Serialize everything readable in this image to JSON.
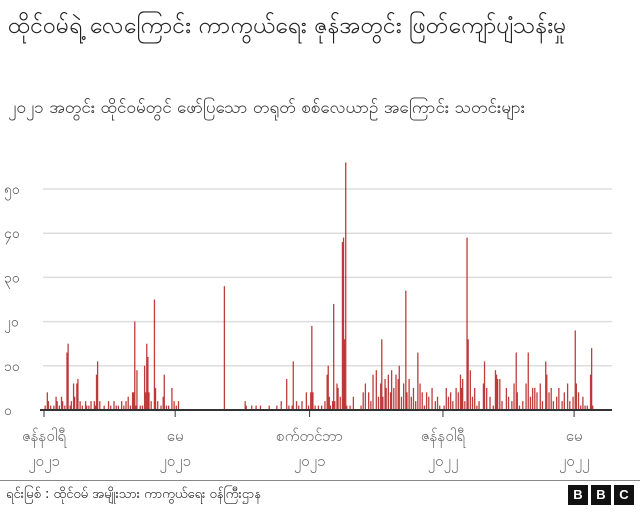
{
  "title": "ထိုင်ဝမ်ရဲ့ လေကြောင်း ကာကွယ်ရေး ဇုန်အတွင်း ဖြတ်ကျော်ပျံသန်းမှု",
  "subtitle": "၂၀၂၁ အတွင်း ထိုင်ဝမ်တွင် ဖော်ပြသော တရုတ် စစ်လေယာဉ် အကြောင်း သတင်းများ",
  "source": "ရင်းမြစ် : ထိုင်ဝမ် အမျိုးသား ကာကွယ်ရေး ဝန်ကြီးဌာန",
  "logo": [
    "B",
    "B",
    "C"
  ],
  "colors": {
    "bar": "#b31b1b",
    "grid": "#dddddd",
    "axis": "#333333"
  },
  "chart_data": {
    "type": "bar",
    "title": "",
    "xlabel": "",
    "ylabel": "",
    "ylim": [
      0,
      58
    ],
    "grid": true,
    "y_ticks": [
      {
        "value": 0,
        "label": "၀"
      },
      {
        "value": 10,
        "label": "၁၀"
      },
      {
        "value": 20,
        "label": "၂၀"
      },
      {
        "value": 30,
        "label": "၃၀"
      },
      {
        "value": 40,
        "label": "၄၀"
      },
      {
        "value": 50,
        "label": "၅၀"
      }
    ],
    "x_ticks": [
      {
        "date": "2021-01-01",
        "month": "ဇန်နဝါရီ",
        "year": "၂၀၂၁"
      },
      {
        "date": "2021-05-01",
        "month": "မေ",
        "year": "၂၀၂၁"
      },
      {
        "date": "2021-09-01",
        "month": "စက်တင်ဘာ",
        "year": "၂၀၂၁"
      },
      {
        "date": "2022-01-01",
        "month": "ဇန်နဝါရီ",
        "year": "၂၀၂၂"
      },
      {
        "date": "2022-05-01",
        "month": "မေ",
        "year": "၂၀၂၂"
      }
    ],
    "points": [
      [
        "2021-01-02",
        1
      ],
      [
        "2021-01-04",
        4
      ],
      [
        "2021-01-05",
        2
      ],
      [
        "2021-01-07",
        1
      ],
      [
        "2021-01-10",
        1
      ],
      [
        "2021-01-12",
        3
      ],
      [
        "2021-01-13",
        2
      ],
      [
        "2021-01-15",
        1
      ],
      [
        "2021-01-17",
        3
      ],
      [
        "2021-01-18",
        2
      ],
      [
        "2021-01-20",
        1
      ],
      [
        "2021-01-22",
        13
      ],
      [
        "2021-01-23",
        15
      ],
      [
        "2021-01-25",
        1
      ],
      [
        "2021-01-26",
        2
      ],
      [
        "2021-01-28",
        6
      ],
      [
        "2021-01-29",
        3
      ],
      [
        "2021-01-31",
        6
      ],
      [
        "2021-02-01",
        7
      ],
      [
        "2021-02-03",
        2
      ],
      [
        "2021-02-05",
        1
      ],
      [
        "2021-02-08",
        2
      ],
      [
        "2021-02-09",
        1
      ],
      [
        "2021-02-11",
        1
      ],
      [
        "2021-02-13",
        2
      ],
      [
        "2021-02-16",
        2
      ],
      [
        "2021-02-17",
        1
      ],
      [
        "2021-02-18",
        8
      ],
      [
        "2021-02-19",
        11
      ],
      [
        "2021-02-21",
        2
      ],
      [
        "2021-02-25",
        1
      ],
      [
        "2021-03-01",
        2
      ],
      [
        "2021-03-03",
        1
      ],
      [
        "2021-03-06",
        2
      ],
      [
        "2021-03-08",
        1
      ],
      [
        "2021-03-10",
        1
      ],
      [
        "2021-03-13",
        2
      ],
      [
        "2021-03-15",
        1
      ],
      [
        "2021-03-17",
        2
      ],
      [
        "2021-03-19",
        3
      ],
      [
        "2021-03-21",
        1
      ],
      [
        "2021-03-23",
        4
      ],
      [
        "2021-03-24",
        4
      ],
      [
        "2021-03-25",
        20
      ],
      [
        "2021-03-26",
        1
      ],
      [
        "2021-03-27",
        9
      ],
      [
        "2021-03-30",
        1
      ],
      [
        "2021-04-01",
        1
      ],
      [
        "2021-04-03",
        10
      ],
      [
        "2021-04-04",
        4
      ],
      [
        "2021-04-05",
        15
      ],
      [
        "2021-04-06",
        12
      ],
      [
        "2021-04-07",
        4
      ],
      [
        "2021-04-09",
        2
      ],
      [
        "2021-04-12",
        25
      ],
      [
        "2021-04-13",
        5
      ],
      [
        "2021-04-15",
        2
      ],
      [
        "2021-04-18",
        1
      ],
      [
        "2021-04-20",
        3
      ],
      [
        "2021-04-21",
        8
      ],
      [
        "2021-04-23",
        1
      ],
      [
        "2021-04-25",
        1
      ],
      [
        "2021-04-28",
        5
      ],
      [
        "2021-04-30",
        2
      ],
      [
        "2021-05-02",
        1
      ],
      [
        "2021-05-04",
        2
      ],
      [
        "2021-06-15",
        28
      ],
      [
        "2021-07-04",
        2
      ],
      [
        "2021-07-05",
        1
      ],
      [
        "2021-07-10",
        1
      ],
      [
        "2021-07-14",
        1
      ],
      [
        "2021-07-18",
        1
      ],
      [
        "2021-07-26",
        1
      ],
      [
        "2021-08-02",
        1
      ],
      [
        "2021-08-06",
        2
      ],
      [
        "2021-08-11",
        7
      ],
      [
        "2021-08-13",
        1
      ],
      [
        "2021-08-16",
        1
      ],
      [
        "2021-08-17",
        11
      ],
      [
        "2021-08-20",
        2
      ],
      [
        "2021-08-22",
        1
      ],
      [
        "2021-08-25",
        2
      ],
      [
        "2021-08-29",
        4
      ],
      [
        "2021-08-31",
        1
      ],
      [
        "2021-09-02",
        4
      ],
      [
        "2021-09-03",
        19
      ],
      [
        "2021-09-04",
        4
      ],
      [
        "2021-09-06",
        1
      ],
      [
        "2021-09-09",
        1
      ],
      [
        "2021-09-12",
        1
      ],
      [
        "2021-09-15",
        2
      ],
      [
        "2021-09-17",
        8
      ],
      [
        "2021-09-18",
        10
      ],
      [
        "2021-09-19",
        3
      ],
      [
        "2021-09-20",
        1
      ],
      [
        "2021-09-22",
        2
      ],
      [
        "2021-09-23",
        24
      ],
      [
        "2021-09-24",
        2
      ],
      [
        "2021-09-26",
        6
      ],
      [
        "2021-09-27",
        5
      ],
      [
        "2021-09-29",
        3
      ],
      [
        "2021-10-01",
        38
      ],
      [
        "2021-10-02",
        39
      ],
      [
        "2021-10-03",
        16
      ],
      [
        "2021-10-04",
        56
      ],
      [
        "2021-10-05",
        1
      ],
      [
        "2021-10-08",
        1
      ],
      [
        "2021-10-11",
        3
      ],
      [
        "2021-10-18",
        1
      ],
      [
        "2021-10-20",
        4
      ],
      [
        "2021-10-22",
        6
      ],
      [
        "2021-10-25",
        4
      ],
      [
        "2021-10-27",
        2
      ],
      [
        "2021-10-29",
        8
      ],
      [
        "2021-11-01",
        9
      ],
      [
        "2021-11-03",
        3
      ],
      [
        "2021-11-05",
        6
      ],
      [
        "2021-11-06",
        16
      ],
      [
        "2021-11-07",
        3
      ],
      [
        "2021-11-09",
        7
      ],
      [
        "2021-11-10",
        5
      ],
      [
        "2021-11-12",
        8
      ],
      [
        "2021-11-14",
        4
      ],
      [
        "2021-11-15",
        9
      ],
      [
        "2021-11-17",
        5
      ],
      [
        "2021-11-19",
        8
      ],
      [
        "2021-11-21",
        7
      ],
      [
        "2021-11-22",
        10
      ],
      [
        "2021-11-24",
        3
      ],
      [
        "2021-11-26",
        6
      ],
      [
        "2021-11-28",
        27
      ],
      [
        "2021-11-29",
        4
      ],
      [
        "2021-12-01",
        7
      ],
      [
        "2021-12-03",
        3
      ],
      [
        "2021-12-05",
        5
      ],
      [
        "2021-12-07",
        2
      ],
      [
        "2021-12-09",
        13
      ],
      [
        "2021-12-11",
        6
      ],
      [
        "2021-12-13",
        4
      ],
      [
        "2021-12-15",
        1
      ],
      [
        "2021-12-17",
        4
      ],
      [
        "2021-12-19",
        3
      ],
      [
        "2021-12-22",
        5
      ],
      [
        "2021-12-25",
        2
      ],
      [
        "2021-12-27",
        3
      ],
      [
        "2021-12-29",
        1
      ],
      [
        "2022-01-02",
        1
      ],
      [
        "2022-01-04",
        5
      ],
      [
        "2022-01-06",
        3
      ],
      [
        "2022-01-08",
        4
      ],
      [
        "2022-01-10",
        2
      ],
      [
        "2022-01-13",
        5
      ],
      [
        "2022-01-15",
        4
      ],
      [
        "2022-01-17",
        8
      ],
      [
        "2022-01-18",
        5
      ],
      [
        "2022-01-19",
        7
      ],
      [
        "2022-01-21",
        2
      ],
      [
        "2022-01-23",
        39
      ],
      [
        "2022-01-24",
        16
      ],
      [
        "2022-01-26",
        9
      ],
      [
        "2022-01-28",
        3
      ],
      [
        "2022-01-30",
        5
      ],
      [
        "2022-02-01",
        1
      ],
      [
        "2022-02-03",
        2
      ],
      [
        "2022-02-07",
        6
      ],
      [
        "2022-02-08",
        11
      ],
      [
        "2022-02-10",
        5
      ],
      [
        "2022-02-13",
        3
      ],
      [
        "2022-02-16",
        1
      ],
      [
        "2022-02-18",
        9
      ],
      [
        "2022-02-19",
        8
      ],
      [
        "2022-02-20",
        7
      ],
      [
        "2022-02-22",
        7
      ],
      [
        "2022-02-24",
        2
      ],
      [
        "2022-02-28",
        5
      ],
      [
        "2022-03-02",
        3
      ],
      [
        "2022-03-05",
        2
      ],
      [
        "2022-03-07",
        6
      ],
      [
        "2022-03-09",
        13
      ],
      [
        "2022-03-10",
        4
      ],
      [
        "2022-03-12",
        1
      ],
      [
        "2022-03-15",
        2
      ],
      [
        "2022-03-18",
        6
      ],
      [
        "2022-03-20",
        13
      ],
      [
        "2022-03-22",
        3
      ],
      [
        "2022-03-24",
        5
      ],
      [
        "2022-03-26",
        5
      ],
      [
        "2022-03-28",
        4
      ],
      [
        "2022-03-31",
        6
      ],
      [
        "2022-04-02",
        2
      ],
      [
        "2022-04-05",
        11
      ],
      [
        "2022-04-06",
        8
      ],
      [
        "2022-04-08",
        4
      ],
      [
        "2022-04-10",
        5
      ],
      [
        "2022-04-12",
        2
      ],
      [
        "2022-04-15",
        3
      ],
      [
        "2022-04-17",
        5
      ],
      [
        "2022-04-20",
        2
      ],
      [
        "2022-04-22",
        4
      ],
      [
        "2022-04-25",
        6
      ],
      [
        "2022-04-27",
        2
      ],
      [
        "2022-04-30",
        3
      ],
      [
        "2022-05-02",
        18
      ],
      [
        "2022-05-03",
        6
      ],
      [
        "2022-05-05",
        4
      ],
      [
        "2022-05-07",
        1
      ],
      [
        "2022-05-09",
        3
      ],
      [
        "2022-05-11",
        1
      ],
      [
        "2022-05-13",
        1
      ],
      [
        "2022-05-16",
        8
      ],
      [
        "2022-05-17",
        14
      ],
      [
        "2022-05-18",
        1
      ]
    ]
  }
}
